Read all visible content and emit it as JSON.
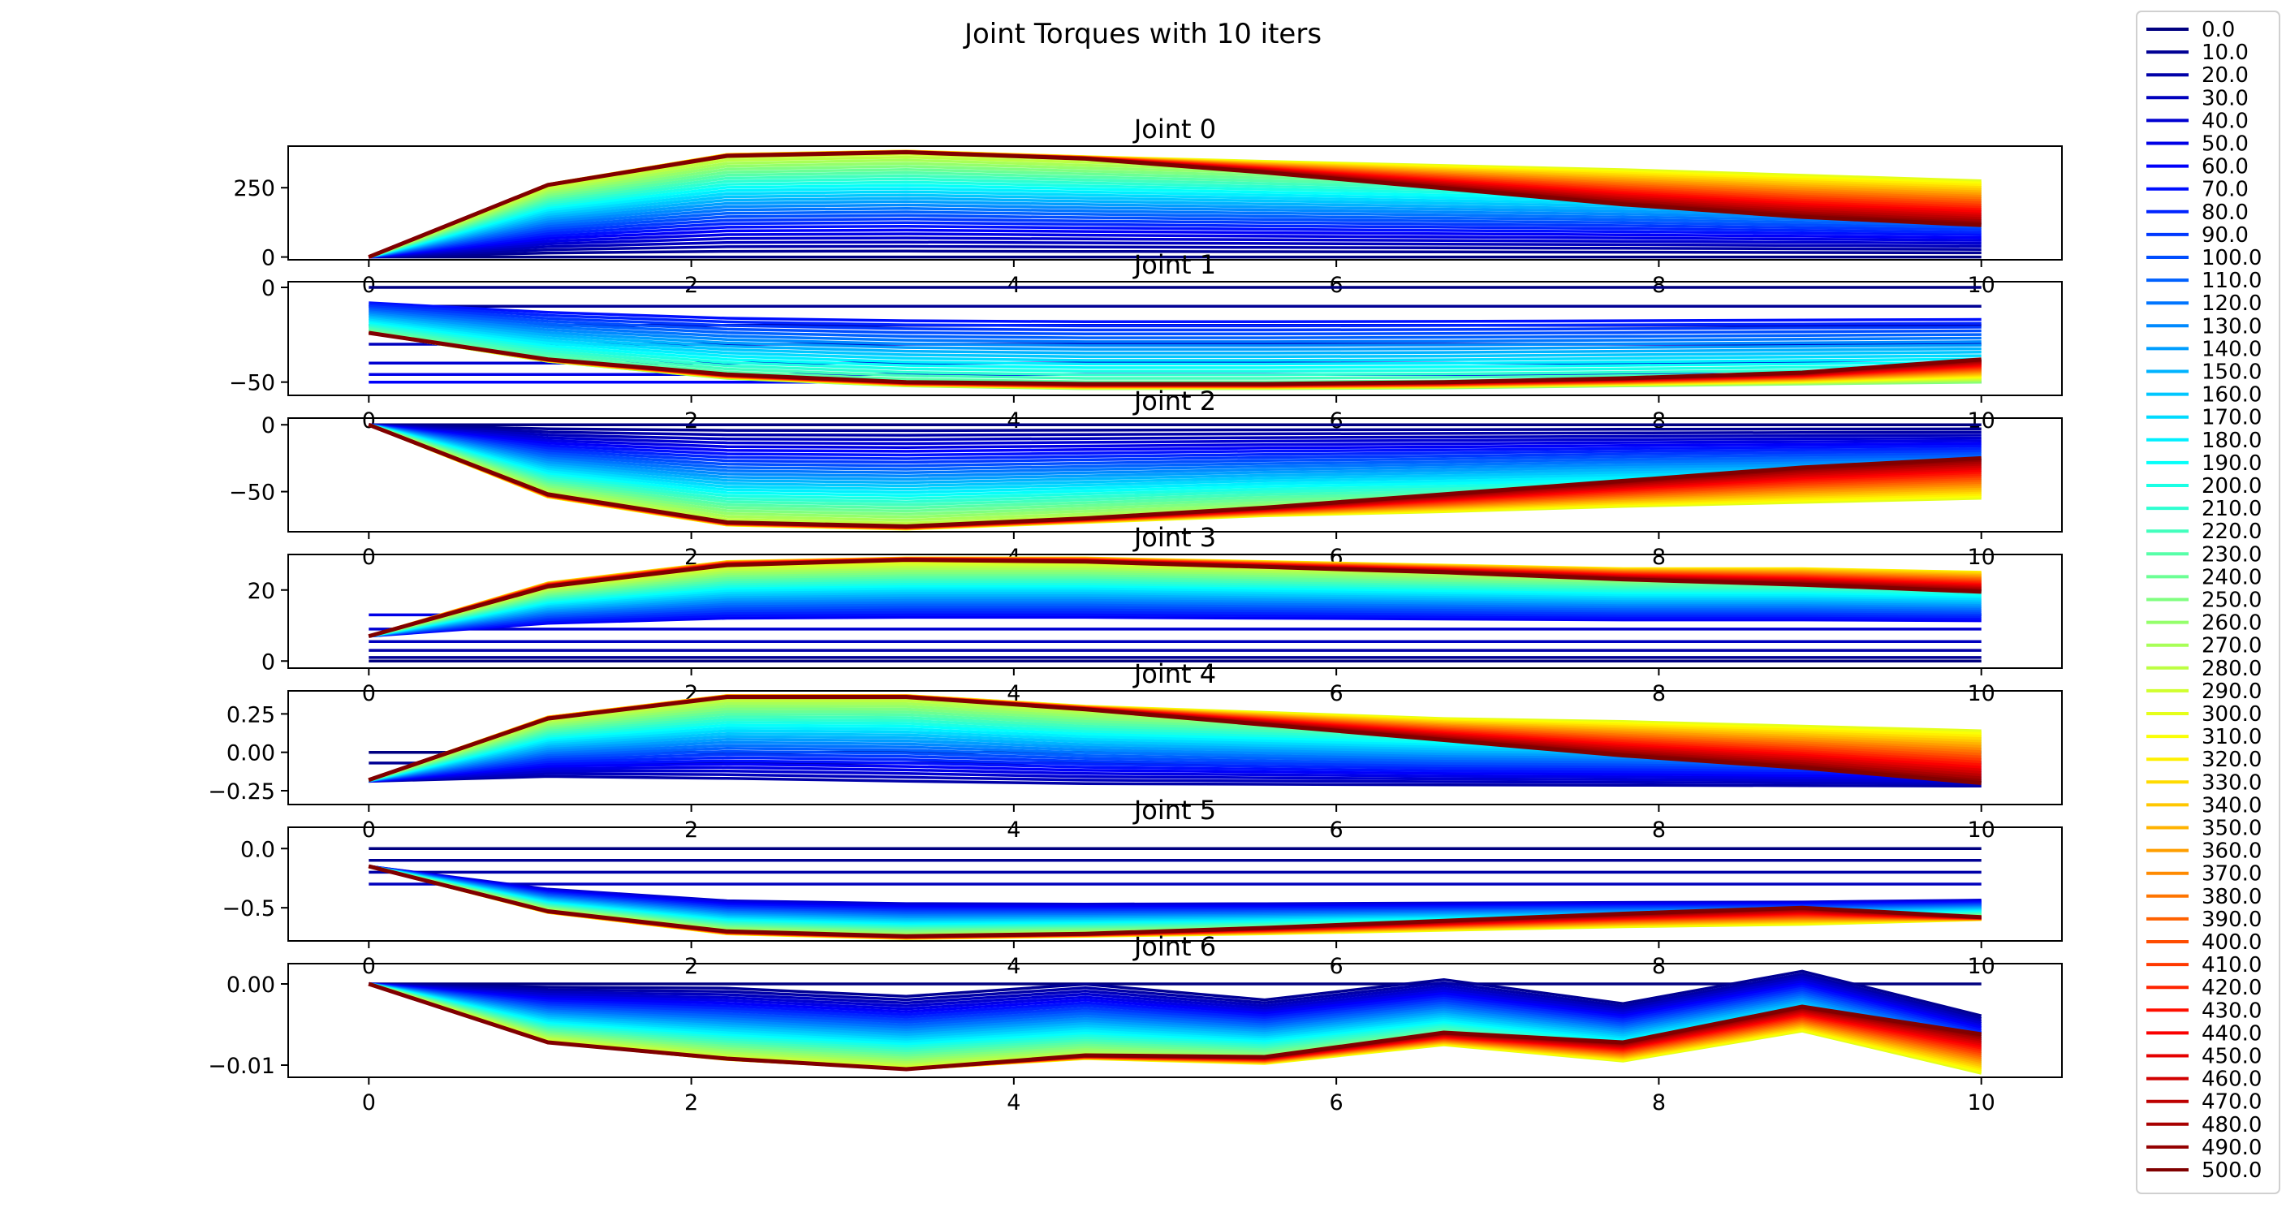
{
  "figure": {
    "title": "Joint Torques with 10 iters"
  },
  "chart_data": {
    "type": "line",
    "title": "Joint Torques with 10 iters",
    "x": [
      0,
      1.111,
      2.222,
      3.333,
      4.444,
      5.556,
      6.667,
      7.778,
      8.889,
      10
    ],
    "xlim": [
      -0.5,
      10.5
    ],
    "x_ticks": [
      0,
      2,
      4,
      6,
      8,
      10
    ],
    "legend_placement": "right, outside",
    "colormap": "jet",
    "series_names": [
      "0.0",
      "10.0",
      "20.0",
      "30.0",
      "40.0",
      "50.0",
      "60.0",
      "70.0",
      "80.0",
      "90.0",
      "100.0",
      "110.0",
      "120.0",
      "130.0",
      "140.0",
      "150.0",
      "160.0",
      "170.0",
      "180.0",
      "190.0",
      "200.0",
      "210.0",
      "220.0",
      "230.0",
      "240.0",
      "250.0",
      "260.0",
      "270.0",
      "280.0",
      "290.0",
      "300.0",
      "310.0",
      "320.0",
      "330.0",
      "340.0",
      "350.0",
      "360.0",
      "370.0",
      "380.0",
      "390.0",
      "400.0",
      "410.0",
      "420.0",
      "430.0",
      "440.0",
      "450.0",
      "460.0",
      "470.0",
      "480.0",
      "490.0",
      "500.0"
    ],
    "subplots": [
      {
        "title": "Joint 0",
        "ylim": [
          -10,
          400
        ],
        "yticks": [
          0,
          250
        ],
        "ytick_labels": [
          "0",
          "250"
        ],
        "init": [
          0,
          0,
          0,
          0,
          0,
          0,
          0,
          0,
          0,
          0
        ],
        "final": [
          0,
          260,
          365,
          378,
          355,
          305,
          248,
          190,
          145,
          115
        ],
        "peak": [
          0,
          262,
          370,
          382,
          362,
          345,
          330,
          315,
          295,
          275
        ],
        "peak_index": 30
      },
      {
        "title": "Joint 1",
        "ylim": [
          -57,
          3
        ],
        "yticks": [
          0,
          -50
        ],
        "ytick_labels": [
          "0",
          "−50"
        ],
        "init": [
          0,
          0,
          0,
          0,
          0,
          0,
          0,
          0,
          0,
          0
        ],
        "final": [
          -24,
          -38,
          -46,
          -50,
          -51,
          -51,
          -50,
          -48,
          -45,
          -38
        ],
        "peak": [
          -24,
          -39,
          -48,
          -52,
          -53.5,
          -53.5,
          -53,
          -52,
          -51,
          -50
        ],
        "peak_index": 25,
        "flat_steps": [
          0,
          -10,
          -20,
          -30,
          -40,
          -46,
          -50
        ]
      },
      {
        "title": "Joint 2",
        "ylim": [
          -80,
          5
        ],
        "yticks": [
          0,
          -50
        ],
        "ytick_labels": [
          "0",
          "−50"
        ],
        "init": [
          0,
          0,
          0,
          0,
          0,
          0,
          0,
          0,
          0,
          0
        ],
        "final": [
          0,
          -52,
          -73,
          -76,
          -70,
          -62,
          -52,
          -42,
          -32,
          -25
        ],
        "peak": [
          0,
          -54,
          -75,
          -78,
          -73,
          -68,
          -65,
          -61,
          -58,
          -55
        ],
        "peak_index": 30
      },
      {
        "title": "Joint 3",
        "ylim": [
          -2,
          30
        ],
        "yticks": [
          0,
          20
        ],
        "ytick_labels": [
          "0",
          "20"
        ],
        "init": [
          7,
          7,
          7,
          7,
          7,
          7,
          7,
          7,
          7,
          7
        ],
        "final": [
          7,
          21,
          27,
          28.5,
          28,
          26.5,
          25,
          23,
          21.5,
          19.5
        ],
        "peak": [
          7,
          22,
          28,
          29,
          29,
          28,
          27,
          26,
          26,
          25
        ],
        "peak_index": 32,
        "flat_steps": [
          0,
          1,
          3,
          5.5,
          9,
          13
        ]
      },
      {
        "title": "Joint 4",
        "ylim": [
          -0.34,
          0.4
        ],
        "yticks": [
          0.25,
          0,
          -0.25
        ],
        "ytick_labels": [
          "0.25",
          "0.00",
          "−0.25"
        ],
        "init": [
          -0.19,
          -0.2,
          -0.23,
          -0.25,
          -0.26,
          -0.26,
          -0.26,
          -0.26,
          -0.26,
          -0.26
        ],
        "final": [
          -0.18,
          0.22,
          0.36,
          0.36,
          0.28,
          0.18,
          0.08,
          -0.02,
          -0.1,
          -0.2
        ],
        "peak": [
          -0.18,
          0.23,
          0.37,
          0.37,
          0.3,
          0.26,
          0.22,
          0.2,
          0.17,
          0.14
        ],
        "peak_index": 30,
        "flat_steps": [
          0,
          -0.07
        ]
      },
      {
        "title": "Joint 5",
        "ylim": [
          -0.78,
          0.18
        ],
        "yticks": [
          0,
          -0.5
        ],
        "ytick_labels": [
          "0.0",
          "−0.5"
        ],
        "init": [
          -0.15,
          -0.3,
          -0.38,
          -0.4,
          -0.41,
          -0.41,
          -0.41,
          -0.41,
          -0.41,
          -0.4
        ],
        "final": [
          -0.15,
          -0.53,
          -0.7,
          -0.74,
          -0.72,
          -0.67,
          -0.61,
          -0.55,
          -0.5,
          -0.58
        ],
        "peak": [
          -0.15,
          -0.54,
          -0.72,
          -0.76,
          -0.74,
          -0.72,
          -0.69,
          -0.66,
          -0.64,
          -0.6
        ],
        "peak_index": 30,
        "flat_steps": [
          0,
          -0.1,
          -0.2,
          -0.3
        ]
      },
      {
        "title": "Joint 6",
        "ylim": [
          -0.0115,
          0.0025
        ],
        "yticks": [
          0,
          -0.01
        ],
        "ytick_labels": [
          "0.00",
          "−0.01"
        ],
        "init": [
          0,
          0.0,
          0.0,
          -0.001,
          0.0005,
          -0.0015,
          0.001,
          -0.002,
          0.002,
          -0.0035
        ],
        "final": [
          0,
          -0.0072,
          -0.0092,
          -0.0105,
          -0.0088,
          -0.009,
          -0.006,
          -0.0072,
          -0.0028,
          -0.0062
        ],
        "peak": [
          0,
          -0.0072,
          -0.0093,
          -0.0105,
          -0.0092,
          -0.0098,
          -0.0075,
          -0.0095,
          -0.0058,
          -0.011
        ],
        "peak_index": 30,
        "flat_steps": [
          0
        ]
      }
    ]
  }
}
